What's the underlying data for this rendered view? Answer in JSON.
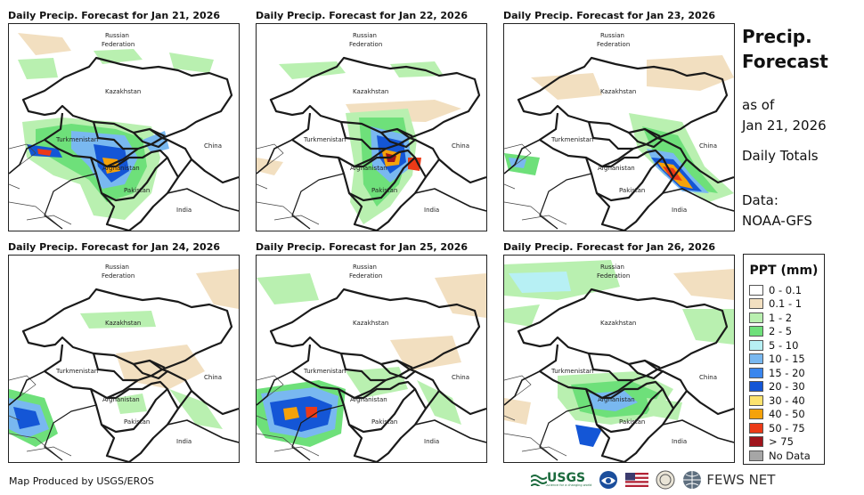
{
  "panels": [
    {
      "title": "Daily Precip. Forecast for Jan 21, 2026",
      "labels": [
        "Russian",
        "Federation",
        "Kazakhstan",
        "Turkmenistan",
        "Afghanistan",
        "Pakistan",
        "China",
        "India"
      ]
    },
    {
      "title": "Daily Precip. Forecast for Jan 22, 2026",
      "labels": [
        "Russian",
        "Federation",
        "Kazakhstan",
        "Turkmenistan",
        "Afghanistan",
        "Pakistan",
        "China",
        "India"
      ]
    },
    {
      "title": "Daily Precip. Forecast for Jan 23, 2026",
      "labels": [
        "Russian",
        "Federation",
        "Kazakhstan",
        "Turkmenistan",
        "Afghanistan",
        "Pakistan",
        "China",
        "India"
      ]
    },
    {
      "title": "Daily Precip. Forecast for Jan 24, 2026",
      "labels": [
        "Russian",
        "Federation",
        "Kazakhstan",
        "Turkmenistan",
        "Afghanistan",
        "Pakistan",
        "China",
        "India"
      ]
    },
    {
      "title": "Daily Precip. Forecast for Jan 25, 2026",
      "labels": [
        "Russian",
        "Federation",
        "Kazakhstan",
        "Turkmenistan",
        "Afghanistan",
        "Pakistan",
        "China",
        "India"
      ]
    },
    {
      "title": "Daily Precip. Forecast for Jan 26, 2026",
      "labels": [
        "Russian",
        "Federation",
        "Kazakhstan",
        "Turkmenistan",
        "Afghanistan",
        "Pakistan",
        "China",
        "India"
      ]
    }
  ],
  "sidebar": {
    "title_line1": "Precip.",
    "title_line2": "Forecast",
    "asof_line1": "as of",
    "asof_line2": "Jan 21, 2026",
    "daily": "Daily Totals",
    "data_line1": "Data:",
    "data_line2": "NOAA-GFS"
  },
  "legend": {
    "title": "PPT (mm)",
    "items": [
      {
        "label": "0 - 0.1",
        "color": "#ffffff"
      },
      {
        "label": "0.1 - 1",
        "color": "#f2dfc0"
      },
      {
        "label": "1 - 2",
        "color": "#b9f0b0"
      },
      {
        "label": "2 - 5",
        "color": "#6ee07a"
      },
      {
        "label": "5 - 10",
        "color": "#b7f0f4"
      },
      {
        "label": "10 - 15",
        "color": "#79b8f0"
      },
      {
        "label": "15 - 20",
        "color": "#3a86ee"
      },
      {
        "label": "20 - 30",
        "color": "#1456d6"
      },
      {
        "label": "30 - 40",
        "color": "#fde36e"
      },
      {
        "label": "40 - 50",
        "color": "#f5a20a"
      },
      {
        "label": "50 - 75",
        "color": "#ec3a17"
      },
      {
        "label": "> 75",
        "color": "#a0141c"
      },
      {
        "label": "No Data",
        "color": "#a6a6a6"
      }
    ]
  },
  "footer": {
    "credit": "Map Produced by USGS/EROS",
    "usgs": "USGS",
    "usgs_tagline": "science for a changing world",
    "fews": "FEWS NET"
  }
}
